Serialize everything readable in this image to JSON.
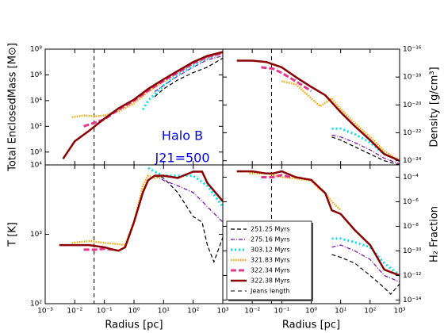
{
  "chart_data": [
    {
      "type": "line",
      "ylabel": "Total EnclosedMass [M⊙]",
      "xscale": "log",
      "yscale": "log",
      "xlim": [
        0.001,
        1000
      ],
      "ylim": [
        0.1,
        100000000
      ],
      "yticks": [
        {
          "value": 1,
          "label": "10⁰"
        },
        {
          "value": 100,
          "label": "10²"
        },
        {
          "value": 10000,
          "label": "10⁴"
        },
        {
          "value": 1000000,
          "label": "10⁶"
        },
        {
          "value": 100000000,
          "label": "10⁸"
        }
      ],
      "annotations": [
        "Halo B",
        "J21=500"
      ],
      "annotation_color": "#0000ee",
      "vlines": [
        {
          "x": 0.045,
          "color": "#000000",
          "dash": "5,4"
        }
      ],
      "series": [
        {
          "color": "#000000",
          "dash": "5,3",
          "width": 1.2,
          "x": [
            5,
            10,
            30,
            100,
            300,
            1000
          ],
          "values": [
            20000,
            80000,
            400000,
            1500000,
            4000000,
            20000000
          ]
        },
        {
          "color": "#7b00b0",
          "dash": "5,2,1,2",
          "width": 1.2,
          "x": [
            5,
            10,
            30,
            100,
            300,
            1000
          ],
          "values": [
            50000,
            150000,
            800000,
            4000000,
            15000000,
            30000000
          ]
        },
        {
          "color": "#00e5ee",
          "dash": "2,3",
          "width": 3,
          "x": [
            2,
            3,
            10,
            30,
            100,
            300,
            1000
          ],
          "values": [
            2000,
            10000,
            150000,
            1000000,
            5000000,
            20000000,
            50000000
          ]
        },
        {
          "color": "#ffa500",
          "dash": "1.5,1.5",
          "width": 2.5,
          "x": [
            0.008,
            0.02,
            0.05,
            0.1,
            0.3,
            1,
            3,
            10,
            30,
            100,
            300,
            1000
          ],
          "values": [
            500,
            700,
            600,
            700,
            1500,
            6000,
            50000,
            300000,
            1500000,
            8000000,
            25000000,
            50000000
          ]
        },
        {
          "color": "#e8338f",
          "dash": "7,3",
          "width": 3,
          "x": [
            0.02,
            0.05,
            0.1,
            0.3,
            1,
            3,
            10,
            30,
            100,
            300,
            1000
          ],
          "values": [
            100,
            200,
            350,
            2000,
            10000,
            60000,
            350000,
            1500000,
            8000000,
            25000000,
            50000000
          ]
        },
        {
          "color": "#8b0000",
          "dash": "",
          "width": 2.5,
          "x": [
            0.004,
            0.01,
            0.03,
            0.1,
            0.3,
            1,
            3,
            10,
            30,
            100,
            300,
            1000
          ],
          "values": [
            0.3,
            7,
            44,
            400,
            2500,
            12000,
            80000,
            450000,
            2000000,
            10000000,
            30000000,
            60000000
          ]
        }
      ]
    },
    {
      "type": "line",
      "ylabel": "Density [g/cm³]",
      "xscale": "log",
      "yscale": "log",
      "xlim": [
        0.001,
        1000
      ],
      "ylim": [
        5e-25,
        1e-16
      ],
      "yticks": [
        {
          "value": 1e-24,
          "label": "10⁻²⁴"
        },
        {
          "value": 1e-22,
          "label": "10⁻²²"
        },
        {
          "value": 1e-20,
          "label": "10⁻²⁰"
        },
        {
          "value": 1e-18,
          "label": "10⁻¹⁸"
        },
        {
          "value": 1e-16,
          "label": "10⁻¹⁶"
        }
      ],
      "vlines": [
        {
          "x": 0.045,
          "color": "#000000",
          "dash": "5,4"
        }
      ],
      "series": [
        {
          "color": "#000000",
          "dash": "5,3",
          "width": 1.2,
          "x": [
            5,
            10,
            30,
            100,
            300,
            1000
          ],
          "values": [
            5e-23,
            3e-23,
            1e-23,
            3e-24,
            1e-24,
            5e-25
          ]
        },
        {
          "color": "#7b00b0",
          "dash": "5,2,1,2",
          "width": 1.2,
          "x": [
            5,
            10,
            30,
            100,
            300,
            1000
          ],
          "values": [
            7e-23,
            5e-23,
            2e-23,
            6e-24,
            1.5e-24,
            6e-25
          ]
        },
        {
          "color": "#00e5ee",
          "dash": "2,3",
          "width": 3,
          "x": [
            5,
            10,
            30,
            100,
            300,
            1000
          ],
          "values": [
            2e-22,
            2e-22,
            8e-23,
            2e-23,
            3e-24,
            1e-24
          ]
        },
        {
          "color": "#ffa500",
          "dash": "1.5,1.5",
          "width": 2.5,
          "x": [
            0.1,
            0.3,
            1,
            2,
            5,
            10,
            30,
            100,
            300,
            1000
          ],
          "values": [
            5e-19,
            3e-19,
            3e-20,
            8e-21,
            3e-20,
            5e-21,
            5e-22,
            5e-23,
            5e-24,
            1e-24
          ]
        },
        {
          "color": "#e8338f",
          "dash": "7,3",
          "width": 3,
          "x": [
            0.02,
            0.05,
            0.1,
            0.3,
            1
          ],
          "values": [
            5e-18,
            4e-18,
            2e-18,
            5e-19,
            1e-19
          ]
        },
        {
          "color": "#8b0000",
          "dash": "",
          "width": 2.5,
          "x": [
            0.003,
            0.01,
            0.03,
            0.1,
            0.3,
            1,
            3,
            10,
            30,
            100,
            300,
            1000
          ],
          "values": [
            1.5e-17,
            1.5e-17,
            1.2e-17,
            5e-18,
            1e-18,
            2e-19,
            5e-20,
            3e-21,
            3e-22,
            3e-23,
            3e-24,
            1e-24
          ]
        }
      ]
    },
    {
      "type": "line",
      "ylabel": "T [K]",
      "xlabel": "Radius [pc]",
      "xscale": "log",
      "yscale": "log",
      "xlim": [
        0.001,
        1000
      ],
      "ylim": [
        100,
        10000
      ],
      "xticks": [
        {
          "value": 0.001,
          "label": "10⁻³"
        },
        {
          "value": 0.01,
          "label": "10⁻²"
        },
        {
          "value": 0.1,
          "label": "10⁻¹"
        },
        {
          "value": 1,
          "label": "10⁰"
        },
        {
          "value": 10,
          "label": "10¹"
        },
        {
          "value": 100,
          "label": "10²"
        },
        {
          "value": 1000,
          "label": "10³"
        }
      ],
      "yticks": [
        {
          "value": 100,
          "label": "10²"
        },
        {
          "value": 1000,
          "label": "10³"
        },
        {
          "value": 10000,
          "label": "10⁴"
        }
      ],
      "vlines": [
        {
          "x": 0.045,
          "color": "#000000",
          "dash": "5,4"
        }
      ],
      "series": [
        {
          "color": "#000000",
          "dash": "5,3",
          "width": 1.2,
          "x": [
            5,
            10,
            30,
            100,
            200,
            300,
            500,
            1000
          ],
          "values": [
            7000,
            6500,
            4000,
            1800,
            1500,
            700,
            400,
            900
          ]
        },
        {
          "color": "#7b00b0",
          "dash": "5,2,1,2",
          "width": 1.2,
          "x": [
            5,
            10,
            30,
            100,
            200,
            300,
            1000
          ],
          "values": [
            7000,
            6000,
            5000,
            4000,
            3000,
            2500,
            1500
          ]
        },
        {
          "color": "#00e5ee",
          "dash": "2,3",
          "width": 3,
          "x": [
            3,
            5,
            10,
            30,
            100,
            300,
            1000
          ],
          "values": [
            9000,
            8000,
            7000,
            7000,
            7000,
            5000,
            2500
          ]
        },
        {
          "color": "#ffa500",
          "dash": "1.5,1.5",
          "width": 2.5,
          "x": [
            0.008,
            0.03,
            0.05,
            0.1,
            0.3,
            0.5,
            1,
            2,
            3,
            5,
            10
          ],
          "values": [
            750,
            800,
            780,
            750,
            720,
            700,
            1500,
            5000,
            7000,
            6500,
            7000
          ]
        },
        {
          "color": "#e8338f",
          "dash": "7,3",
          "width": 3,
          "x": [
            0.02,
            0.05,
            0.1,
            0.2
          ],
          "values": [
            600,
            600,
            620,
            600
          ]
        },
        {
          "color": "#8b0000",
          "dash": "",
          "width": 2.5,
          "x": [
            0.003,
            0.01,
            0.03,
            0.1,
            0.2,
            0.3,
            0.5,
            1,
            2,
            3,
            5,
            10,
            30,
            100,
            200,
            300,
            1000
          ],
          "values": [
            700,
            700,
            700,
            650,
            600,
            580,
            650,
            1500,
            4000,
            6000,
            7000,
            7000,
            6500,
            8000,
            8000,
            5500,
            3000
          ]
        }
      ]
    },
    {
      "type": "line",
      "ylabel": "H₂ Fraction",
      "xlabel": "Radius [pc]",
      "xscale": "log",
      "yscale": "log",
      "xlim": [
        0.001,
        1000
      ],
      "ylim": [
        5e-15,
        0.001
      ],
      "xticks": [
        {
          "value": 0.01,
          "label": "10⁻²"
        },
        {
          "value": 0.1,
          "label": "10⁻¹"
        },
        {
          "value": 1,
          "label": "10⁰"
        },
        {
          "value": 10,
          "label": "10¹"
        },
        {
          "value": 100,
          "label": "10²"
        },
        {
          "value": 1000,
          "label": "10³"
        }
      ],
      "yticks": [
        {
          "value": 1e-14,
          "label": "10⁻¹⁴"
        },
        {
          "value": 1e-12,
          "label": "10⁻¹²"
        },
        {
          "value": 1e-10,
          "label": "10⁻¹⁰"
        },
        {
          "value": 1e-08,
          "label": "10⁻⁸"
        },
        {
          "value": 1e-06,
          "label": "10⁻⁶"
        },
        {
          "value": 0.0001,
          "label": "10⁻⁴"
        }
      ],
      "vlines": [
        {
          "x": 0.045,
          "color": "#000000",
          "dash": "5,4",
          "name": "Jeans length"
        }
      ],
      "legend": "lower left",
      "series": [
        {
          "name": "251.25 Myrs",
          "color": "#000000",
          "dash": "5,3",
          "width": 1.2,
          "x": [
            5,
            10,
            30,
            100,
            300,
            500,
            1000
          ],
          "values": [
            5e-11,
            3e-11,
            1e-11,
            1e-12,
            1e-13,
            3e-14,
            2e-13
          ]
        },
        {
          "name": "275.16 Myrs",
          "color": "#7b00b0",
          "dash": "5,2,1,2",
          "width": 1.2,
          "x": [
            5,
            10,
            30,
            100,
            300,
            1000
          ],
          "values": [
            2e-10,
            3e-10,
            1e-10,
            2e-11,
            1e-12,
            3e-13
          ]
        },
        {
          "name": "303.12 Myrs",
          "color": "#00e5ee",
          "dash": "2,3",
          "width": 3,
          "x": [
            5,
            10,
            30,
            100,
            300,
            1000
          ],
          "values": [
            1e-09,
            1e-09,
            5e-10,
            2e-10,
            1e-11,
            1e-12
          ]
        },
        {
          "name": "321.83 Myrs",
          "color": "#ffa500",
          "dash": "1.5,1.5",
          "width": 2.5,
          "x": [
            0.008,
            0.03,
            0.1,
            0.3,
            1,
            2,
            3,
            5,
            10
          ],
          "values": [
            0.0002,
            0.0002,
            0.0001,
            8e-05,
            5e-05,
            1e-05,
            5e-06,
            1e-06,
            2e-07
          ]
        },
        {
          "name": "322.34 Myrs",
          "color": "#e8338f",
          "dash": "7,3",
          "width": 3,
          "x": [
            0.02,
            0.05,
            0.1,
            0.2
          ],
          "values": [
            0.0001,
            0.0001,
            0.00015,
            0.0001
          ]
        },
        {
          "name": "322.38 Myrs",
          "color": "#8b0000",
          "dash": "",
          "width": 2.5,
          "x": [
            0.003,
            0.01,
            0.03,
            0.05,
            0.1,
            0.3,
            1,
            3,
            5,
            10,
            30,
            100,
            300,
            1000
          ],
          "values": [
            0.0003,
            0.0003,
            0.0002,
            0.0002,
            0.0003,
            0.0001,
            6e-05,
            5e-06,
            2e-07,
            1e-07,
            5e-09,
            3e-10,
            3e-12,
            1e-12
          ]
        }
      ]
    }
  ]
}
